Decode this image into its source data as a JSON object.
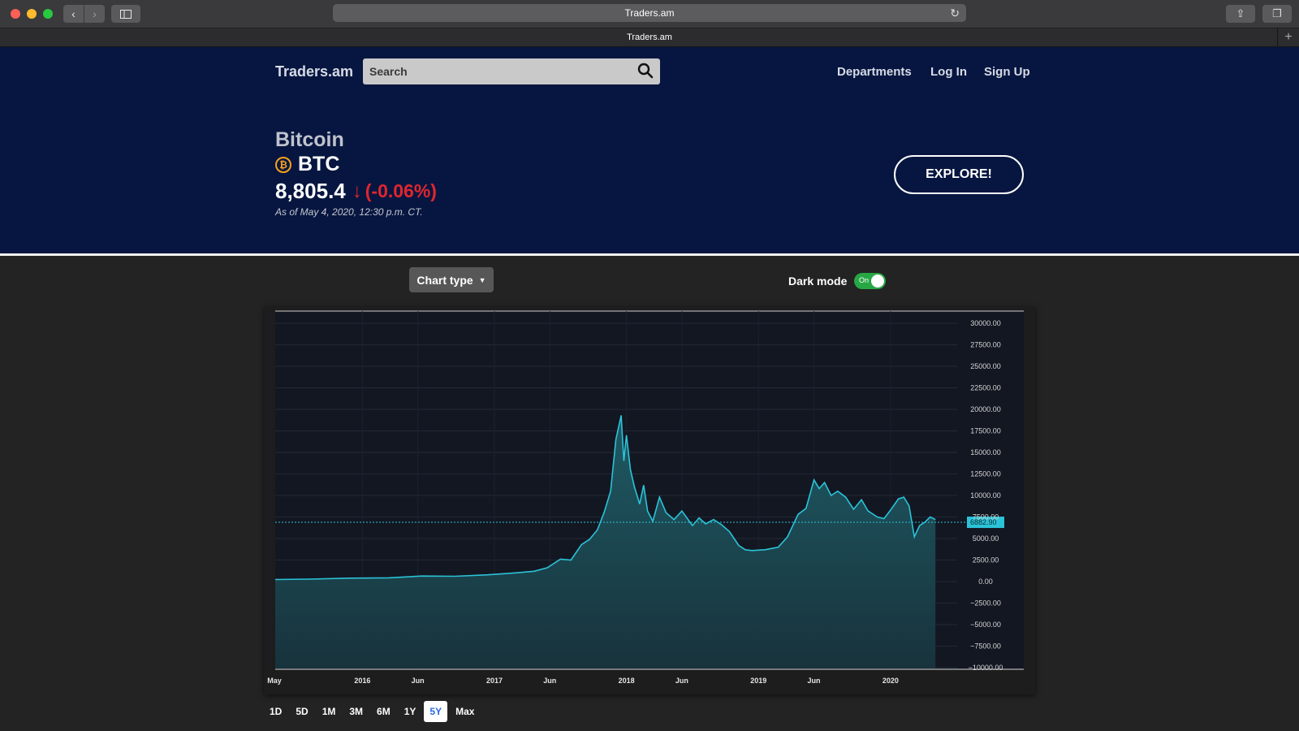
{
  "browser": {
    "url": "Traders.am",
    "tab_title": "Traders.am"
  },
  "header": {
    "logo": "Traders.am",
    "search_label": "Search",
    "nav": [
      "Departments",
      "Log In",
      "Sign Up"
    ]
  },
  "asset": {
    "name": "Bitcoin",
    "icon_glyph": "₿",
    "ticker": "BTC",
    "price": "8,805.4",
    "change": "(-0.06%)",
    "as_of": "As of May 4, 2020, 12:30 p.m. CT."
  },
  "explore_label": "EXPLORE!",
  "controls": {
    "chart_type_label": "Chart type",
    "dark_mode_label": "Dark mode",
    "dark_mode_state": "On"
  },
  "ranges": [
    "1D",
    "5D",
    "1M",
    "3M",
    "6M",
    "1Y",
    "5Y",
    "Max"
  ],
  "active_range": "5Y",
  "colors": {
    "accent": "#2bc3d8",
    "header_bg": "#071640",
    "negative": "#e0262f",
    "toggle_on": "#27a744"
  },
  "chart_data": {
    "type": "area",
    "series": [
      {
        "x": [
          2015.34,
          2015.6,
          2015.9,
          2016.2,
          2016.45,
          2016.7,
          2016.95,
          2017.15,
          2017.3,
          2017.4,
          2017.5,
          2017.58,
          2017.66,
          2017.72,
          2017.78,
          2017.83,
          2017.88,
          2017.92,
          2017.96,
          2017.98,
          2018.0,
          2018.03,
          2018.06,
          2018.1,
          2018.13,
          2018.16,
          2018.2,
          2018.25,
          2018.3,
          2018.36,
          2018.42,
          2018.5,
          2018.55,
          2018.6,
          2018.66,
          2018.72,
          2018.78,
          2018.85,
          2018.9,
          2018.95,
          2019.05,
          2019.15,
          2019.22,
          2019.3,
          2019.36,
          2019.42,
          2019.46,
          2019.5,
          2019.55,
          2019.6,
          2019.66,
          2019.72,
          2019.78,
          2019.83,
          2019.9,
          2019.95,
          2020.0,
          2020.06,
          2020.1,
          2020.14,
          2020.18,
          2020.22,
          2020.26,
          2020.3,
          2020.34
        ],
        "y": [
          240,
          280,
          400,
          430,
          640,
          610,
          780,
          1000,
          1200,
          1600,
          2600,
          2500,
          4300,
          4900,
          6000,
          8000,
          10500,
          16500,
          19300,
          14000,
          17000,
          13000,
          11000,
          9000,
          11200,
          8200,
          7000,
          9800,
          8000,
          7200,
          8200,
          6500,
          7400,
          6700,
          7200,
          6600,
          5800,
          4200,
          3700,
          3600,
          3700,
          4000,
          5200,
          7800,
          8500,
          11800,
          10800,
          11500,
          10000,
          10500,
          9800,
          8400,
          9500,
          8200,
          7500,
          7300,
          8300,
          9600,
          9800,
          8800,
          5200,
          6500,
          6900,
          7500,
          7200
        ]
      }
    ],
    "x_ticks": [
      "May",
      "2016",
      "Jun",
      "2017",
      "Jun",
      "2018",
      "Jun",
      "2019",
      "Jun",
      "2020"
    ],
    "y_ticks": [
      "30000.00",
      "27500.00",
      "25000.00",
      "22500.00",
      "20000.00",
      "17500.00",
      "15000.00",
      "12500.00",
      "10000.00",
      "7500.00",
      "5000.00",
      "2500.00",
      "0.00",
      "−2500.00",
      "−5000.00",
      "−7500.00",
      "−10000.00"
    ],
    "ylim": [
      -10000,
      30000
    ],
    "crosshair_value": 6882.9,
    "crosshair_label": "6882.90",
    "grid": true
  }
}
